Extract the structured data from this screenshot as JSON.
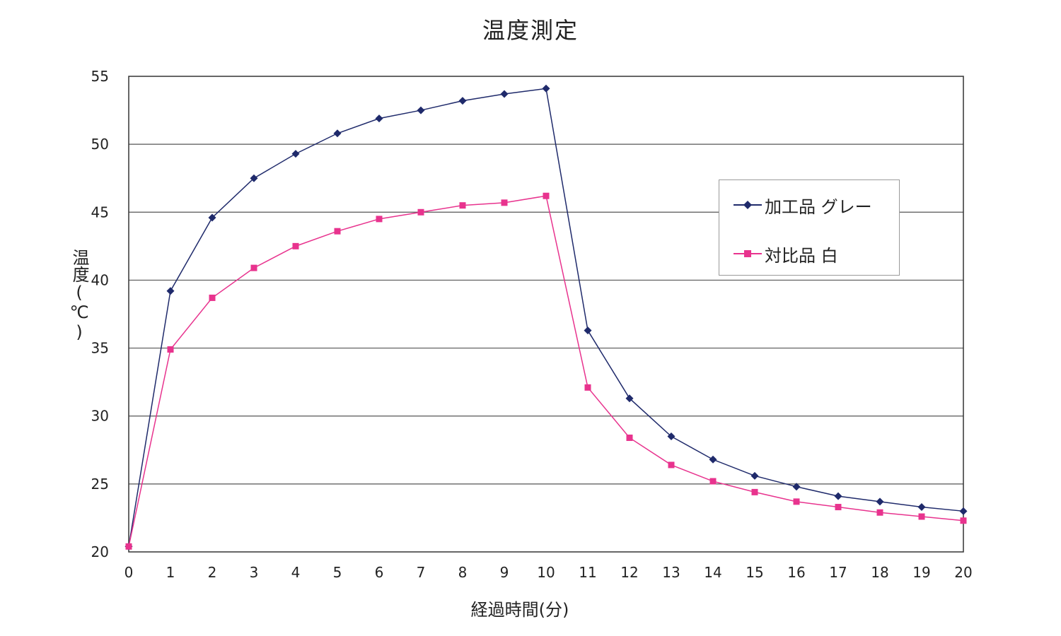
{
  "chart_data": {
    "type": "line",
    "title": "温度測定",
    "xlabel": "経過時間(分)",
    "ylabel": "温度(℃)",
    "x": [
      0,
      1,
      2,
      3,
      4,
      5,
      6,
      7,
      8,
      9,
      10,
      11,
      12,
      13,
      14,
      15,
      16,
      17,
      18,
      19,
      20
    ],
    "xlim": [
      0,
      20
    ],
    "ylim": [
      20,
      55
    ],
    "yticks": [
      20,
      25,
      30,
      35,
      40,
      45,
      50,
      55
    ],
    "grid": "horizontal",
    "legend_position": "right",
    "series": [
      {
        "name": "加工品 グレー",
        "color": "#1f2a6b",
        "marker": "diamond",
        "values": [
          20.4,
          39.2,
          44.6,
          47.5,
          49.3,
          50.8,
          51.9,
          52.5,
          53.2,
          53.7,
          54.1,
          36.3,
          31.3,
          28.5,
          26.8,
          25.6,
          24.8,
          24.1,
          23.7,
          23.3,
          23.0
        ]
      },
      {
        "name": "対比品 白",
        "color": "#e8338e",
        "marker": "square",
        "values": [
          20.4,
          34.9,
          38.7,
          40.9,
          42.5,
          43.6,
          44.5,
          45.0,
          45.5,
          45.7,
          46.2,
          32.1,
          28.4,
          26.4,
          25.2,
          24.4,
          23.7,
          23.3,
          22.9,
          22.6,
          22.3
        ]
      }
    ]
  }
}
